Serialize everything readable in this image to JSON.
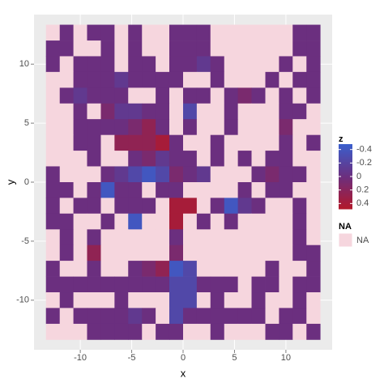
{
  "chart_data": {
    "type": "heatmap",
    "x_label": "x",
    "y_label": "y",
    "x": [
      -12.67,
      -11.33,
      -10,
      -8.67,
      -7.33,
      -6,
      -4.67,
      -3.33,
      -2,
      -0.67,
      0.67,
      2,
      3.33,
      4.67,
      6,
      7.33,
      8.67,
      10,
      11.33,
      12.67
    ],
    "y": [
      12.67,
      11.33,
      10,
      8.67,
      7.33,
      6,
      4.67,
      3.33,
      2,
      0.67,
      -0.67,
      -2,
      -3.33,
      -4.67,
      -6,
      -7.33,
      -8.67,
      -10,
      -11.33,
      -12.67
    ],
    "z": [
      [
        null,
        0,
        null,
        0,
        0,
        null,
        0,
        null,
        null,
        0,
        0,
        0,
        null,
        null,
        null,
        null,
        null,
        null,
        0,
        0
      ],
      [
        0,
        0,
        null,
        null,
        0,
        null,
        0,
        null,
        null,
        0,
        0,
        0,
        null,
        null,
        null,
        null,
        null,
        null,
        0,
        0
      ],
      [
        0,
        null,
        0,
        0,
        0,
        null,
        0,
        0,
        null,
        0,
        0,
        -0.1,
        0,
        null,
        null,
        null,
        null,
        0,
        null,
        0
      ],
      [
        null,
        null,
        0,
        0,
        0,
        -0.1,
        0,
        0,
        0,
        0,
        null,
        null,
        0,
        null,
        null,
        null,
        0,
        null,
        0,
        0
      ],
      [
        null,
        0,
        -0.1,
        0,
        0,
        0,
        null,
        null,
        0,
        null,
        0,
        0,
        null,
        0,
        0.1,
        0,
        null,
        0,
        null,
        0
      ],
      [
        null,
        null,
        0,
        null,
        0.1,
        -0.1,
        -0.1,
        0,
        0,
        null,
        -0.25,
        null,
        null,
        0,
        null,
        null,
        null,
        0,
        0,
        null
      ],
      [
        null,
        null,
        0,
        0,
        0,
        0,
        0.1,
        0.25,
        0,
        null,
        0,
        null,
        null,
        0,
        null,
        null,
        null,
        0.1,
        null,
        null
      ],
      [
        null,
        null,
        0,
        0,
        null,
        0.25,
        0.25,
        0.25,
        0.4,
        0,
        null,
        null,
        0,
        null,
        null,
        null,
        null,
        0,
        null,
        0
      ],
      [
        null,
        null,
        null,
        0,
        null,
        null,
        0,
        0.1,
        -0.1,
        0,
        0,
        null,
        0,
        null,
        0,
        null,
        0,
        0,
        null,
        null
      ],
      [
        0,
        null,
        null,
        null,
        0,
        -0.1,
        -0.25,
        -0.4,
        -0.25,
        0.1,
        0,
        -0.1,
        null,
        null,
        null,
        0,
        0.1,
        0,
        0,
        null
      ],
      [
        0,
        0,
        null,
        0,
        -0.4,
        0,
        0,
        null,
        0,
        0,
        null,
        null,
        null,
        null,
        0,
        null,
        0,
        0,
        null,
        null
      ],
      [
        0,
        null,
        0,
        0,
        null,
        0,
        0,
        0,
        null,
        0.4,
        0.4,
        null,
        0,
        -0.4,
        -0.1,
        0,
        null,
        null,
        0,
        null
      ],
      [
        0,
        0,
        null,
        null,
        0,
        null,
        -0.4,
        null,
        null,
        0.4,
        null,
        0,
        null,
        0,
        null,
        null,
        null,
        null,
        0,
        null
      ],
      [
        null,
        0,
        null,
        0,
        null,
        null,
        null,
        null,
        null,
        0,
        null,
        null,
        null,
        null,
        null,
        null,
        null,
        null,
        0,
        null
      ],
      [
        null,
        0,
        null,
        0.25,
        null,
        null,
        null,
        null,
        null,
        0.1,
        null,
        null,
        null,
        null,
        null,
        null,
        null,
        null,
        0,
        0
      ],
      [
        0,
        null,
        null,
        0,
        null,
        null,
        0,
        0.1,
        0.25,
        -0.4,
        -0.25,
        null,
        null,
        null,
        null,
        null,
        0,
        null,
        null,
        0
      ],
      [
        0,
        0,
        0,
        0,
        0,
        0,
        0,
        0,
        0,
        -0.25,
        -0.25,
        0,
        0,
        0,
        null,
        0,
        0,
        null,
        0,
        0
      ],
      [
        null,
        0,
        null,
        null,
        null,
        0,
        null,
        null,
        null,
        -0.25,
        -0.25,
        null,
        0,
        null,
        null,
        0,
        null,
        null,
        0,
        null
      ],
      [
        0,
        null,
        0,
        0,
        0,
        0,
        -0.1,
        0,
        null,
        -0.25,
        0,
        0,
        0,
        0,
        0,
        0,
        null,
        0,
        0,
        null
      ],
      [
        null,
        null,
        null,
        0,
        0,
        0,
        0,
        null,
        0,
        0,
        null,
        null,
        0,
        null,
        null,
        null,
        0,
        0,
        null,
        0
      ]
    ],
    "xlim": [
      -14.5,
      14.5
    ],
    "xticks": [
      -10,
      -5,
      0,
      5,
      10
    ],
    "ylim": [
      -14.2,
      14.2
    ],
    "yticks": [
      -10,
      -5,
      0,
      5,
      10
    ],
    "zlim": [
      -0.48,
      0.48
    ],
    "legend_ticks": [
      -0.4,
      -0.2,
      0.0,
      0.2,
      0.4
    ],
    "legend_title": "z",
    "na_legend_title": "NA",
    "na_label": "NA",
    "colors": {
      "low": "#3a5fcd",
      "mid": "#6b2f7f",
      "high": "#b2182b",
      "na": "#f6d6de"
    },
    "grid": true
  }
}
